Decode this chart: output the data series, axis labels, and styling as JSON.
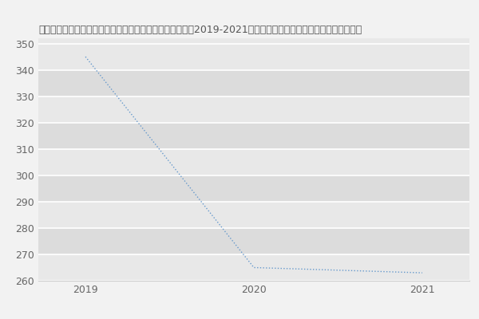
{
  "x": [
    2019,
    2020,
    2021
  ],
  "y": [
    345,
    265,
    263
  ],
  "line_color": "#6699cc",
  "title": "哈尔滨商业大学食品工程学院粮食、油脂及植物蛋白工程（2019-2021历年复试）研究生录取分数线食品工程学院",
  "title_fontsize": 9,
  "ylim": [
    260,
    352
  ],
  "yticks": [
    260,
    270,
    280,
    290,
    300,
    310,
    320,
    330,
    340,
    350
  ],
  "xticks": [
    2019,
    2020,
    2021
  ],
  "fig_bg_color": "#f2f2f2",
  "plot_bg_color": "#e8e8e8",
  "band_colors": [
    "#e8e8e8",
    "#dcdcdc"
  ],
  "grid_color": "#ffffff",
  "title_color": "#555555",
  "tick_color": "#666666",
  "axis_line_color": "#cccccc",
  "line_width": 1.0,
  "xlim": [
    2018.72,
    2021.28
  ]
}
